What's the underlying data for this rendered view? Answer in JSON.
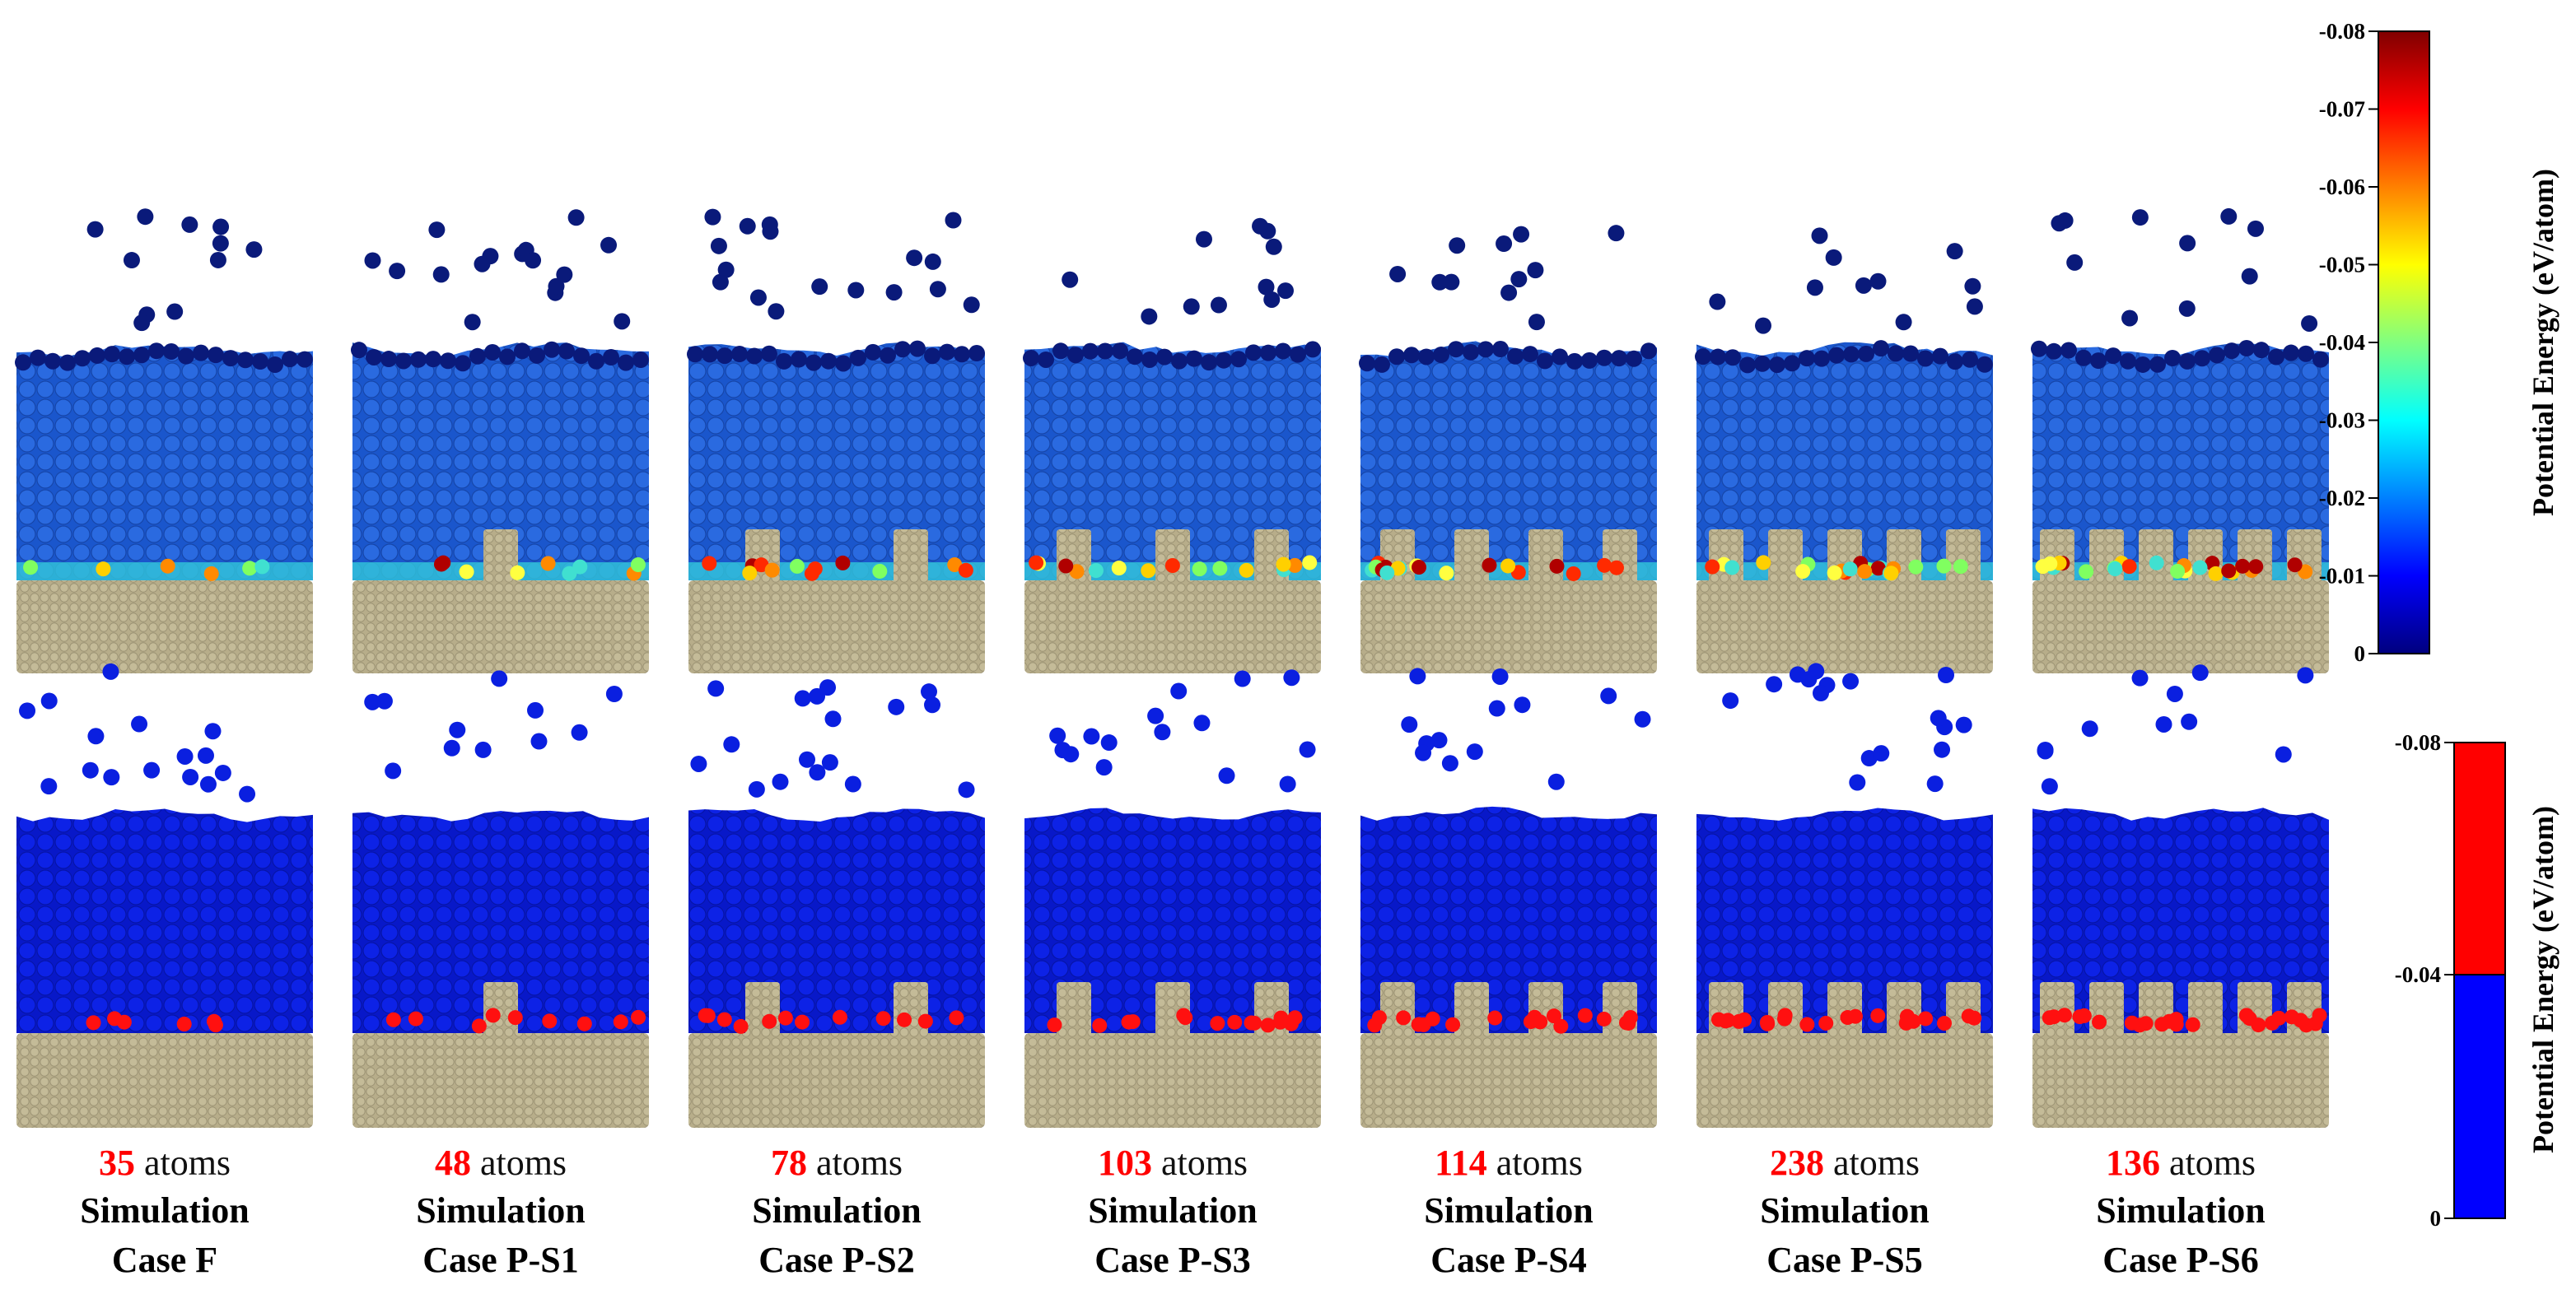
{
  "cases": [
    {
      "atoms": "35",
      "unit": "atoms",
      "line1": "Simulation",
      "line2": "Case F",
      "pillars": 0
    },
    {
      "atoms": "48",
      "unit": "atoms",
      "line1": "Simulation",
      "line2": "Case P-S1",
      "pillars": 1
    },
    {
      "atoms": "78",
      "unit": "atoms",
      "line1": "Simulation",
      "line2": "Case P-S2",
      "pillars": 2
    },
    {
      "atoms": "103",
      "unit": "atoms",
      "line1": "Simulation",
      "line2": "Case P-S3",
      "pillars": 3
    },
    {
      "atoms": "114",
      "unit": "atoms",
      "line1": "Simulation",
      "line2": "Case P-S4",
      "pillars": 4
    },
    {
      "atoms": "238",
      "unit": "atoms",
      "line1": "Simulation",
      "line2": "Case P-S5",
      "pillars": 5
    },
    {
      "atoms": "136",
      "unit": "atoms",
      "line1": "Simulation",
      "line2": "Case P-S6",
      "pillars": 6
    }
  ],
  "colorbar_continuous": {
    "title": "Potential Energy (eV/atom)",
    "ticks": [
      "-0.08",
      "-0.07",
      "-0.06",
      "-0.05",
      "-0.04",
      "-0.03",
      "-0.02",
      "-0.01",
      "0"
    ],
    "colors": [
      "#800000",
      "#ff0000",
      "#ff8000",
      "#ffff00",
      "#80ff80",
      "#00ffff",
      "#0080ff",
      "#0000ff",
      "#00007f"
    ]
  },
  "colorbar_binary": {
    "title": "Potential Energy (eV/atom)",
    "ticks": [
      "-0.08",
      "-0.04",
      "0"
    ],
    "colors": {
      "low": "#ff0000",
      "high": "#0000ff"
    }
  },
  "colors": {
    "substrate": "#b7ad8a",
    "liquid_blue": "#1f5fd8",
    "vapor": "#0a1a7a",
    "binary_blue": "#0a1fe0",
    "binary_red": "#ff1010"
  }
}
